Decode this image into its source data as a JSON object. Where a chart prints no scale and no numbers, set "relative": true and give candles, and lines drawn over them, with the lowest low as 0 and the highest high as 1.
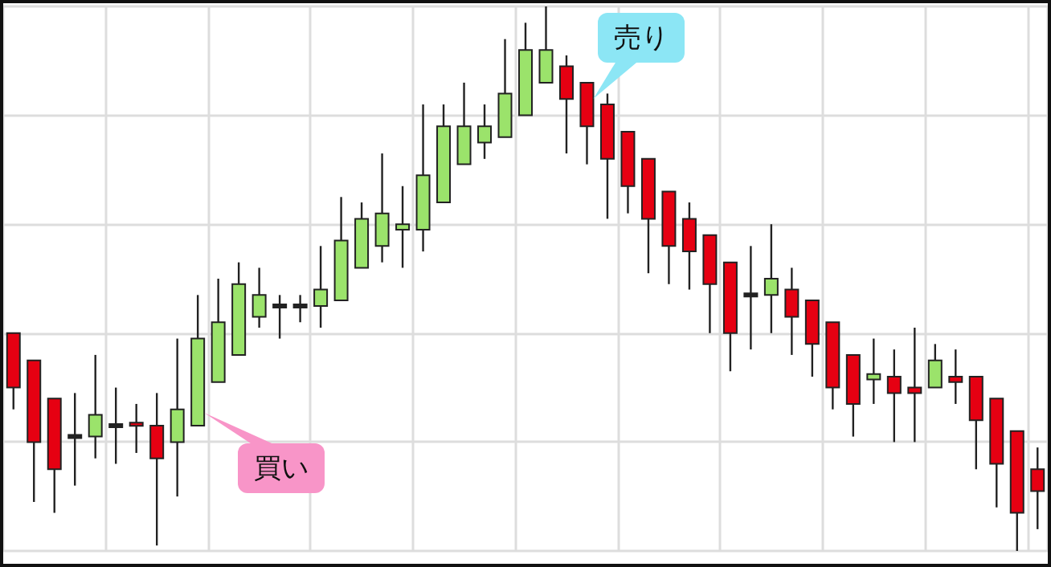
{
  "chart_data": {
    "type": "candlestick",
    "relative": true,
    "grid": true,
    "colors": [
      "#e60012",
      "#e60012",
      "#e60012",
      "#222222",
      "#9be36b",
      "#222222",
      "#e60012",
      "#e60012",
      "#9be36b",
      "#9be36b",
      "#9be36b",
      "#9be36b",
      "#9be36b",
      "#222222",
      "#222222",
      "#9be36b",
      "#9be36b",
      "#9be36b",
      "#9be36b",
      "#9be36b",
      "#9be36b",
      "#9be36b",
      "#9be36b",
      "#9be36b",
      "#9be36b",
      "#9be36b",
      "#9be36b",
      "#e60012",
      "#e60012",
      "#e60012",
      "#e60012",
      "#e60012",
      "#e60012",
      "#e60012",
      "#e60012",
      "#e60012",
      "#222222",
      "#9be36b",
      "#e60012",
      "#e60012",
      "#e60012",
      "#e60012",
      "#9be36b",
      "#e60012",
      "#e60012",
      "#9be36b",
      "#e60012",
      "#e60012",
      "#e60012",
      "#e60012",
      "#e60012"
    ],
    "categories": [
      null,
      null,
      null,
      null,
      null,
      null,
      null,
      null,
      null,
      null,
      null,
      null,
      null,
      null,
      null,
      null,
      null,
      null,
      null,
      null,
      null,
      null,
      null,
      null,
      null,
      null,
      null,
      null,
      null,
      null,
      null,
      null,
      null,
      null,
      null,
      null,
      null,
      null,
      null,
      null,
      null,
      null,
      null,
      null,
      null,
      null,
      null,
      null,
      null,
      null,
      null
    ],
    "ohlc": [
      [
        0.4,
        0.4,
        0.26,
        0.3
      ],
      [
        0.35,
        0.35,
        0.09,
        0.2
      ],
      [
        0.28,
        0.28,
        0.07,
        0.15
      ],
      [
        0.21,
        0.29,
        0.12,
        0.21
      ],
      [
        0.21,
        0.36,
        0.17,
        0.25
      ],
      [
        0.23,
        0.3,
        0.16,
        0.23
      ],
      [
        0.235,
        0.27,
        0.18,
        0.23
      ],
      [
        0.23,
        0.29,
        0.01,
        0.17
      ],
      [
        0.2,
        0.39,
        0.1,
        0.26
      ],
      [
        0.23,
        0.47,
        0.23,
        0.39
      ],
      [
        0.31,
        0.5,
        0.31,
        0.42
      ],
      [
        0.36,
        0.53,
        0.36,
        0.49
      ],
      [
        0.43,
        0.52,
        0.41,
        0.47
      ],
      [
        0.45,
        0.47,
        0.39,
        0.45
      ],
      [
        0.45,
        0.47,
        0.42,
        0.45
      ],
      [
        0.45,
        0.56,
        0.41,
        0.48
      ],
      [
        0.46,
        0.65,
        0.46,
        0.57
      ],
      [
        0.52,
        0.64,
        0.52,
        0.61
      ],
      [
        0.56,
        0.73,
        0.53,
        0.62
      ],
      [
        0.59,
        0.67,
        0.52,
        0.6
      ],
      [
        0.59,
        0.82,
        0.55,
        0.69
      ],
      [
        0.64,
        0.82,
        0.64,
        0.78
      ],
      [
        0.71,
        0.86,
        0.71,
        0.78
      ],
      [
        0.75,
        0.82,
        0.72,
        0.78
      ],
      [
        0.76,
        0.94,
        0.76,
        0.84
      ],
      [
        0.8,
        0.97,
        0.8,
        0.92
      ],
      [
        0.86,
        1,
        0.86,
        0.92
      ],
      [
        0.89,
        0.91,
        0.73,
        0.83
      ],
      [
        0.86,
        0.86,
        0.71,
        0.78
      ],
      [
        0.82,
        0.84,
        0.61,
        0.72
      ],
      [
        0.77,
        0.77,
        0.62,
        0.67
      ],
      [
        0.72,
        0.72,
        0.51,
        0.61
      ],
      [
        0.66,
        0.66,
        0.49,
        0.56
      ],
      [
        0.61,
        0.64,
        0.48,
        0.55
      ],
      [
        0.58,
        0.58,
        0.4,
        0.49
      ],
      [
        0.53,
        0.53,
        0.33,
        0.4
      ],
      [
        0.47,
        0.56,
        0.37,
        0.47
      ],
      [
        0.47,
        0.6,
        0.4,
        0.5
      ],
      [
        0.48,
        0.52,
        0.36,
        0.43
      ],
      [
        0.46,
        0.46,
        0.32,
        0.38
      ],
      [
        0.42,
        0.42,
        0.26,
        0.3
      ],
      [
        0.36,
        0.36,
        0.21,
        0.27
      ],
      [
        0.315,
        0.39,
        0.27,
        0.325
      ],
      [
        0.32,
        0.37,
        0.2,
        0.29
      ],
      [
        0.3,
        0.41,
        0.2,
        0.29
      ],
      [
        0.3,
        0.38,
        0.3,
        0.35
      ],
      [
        0.32,
        0.37,
        0.27,
        0.31
      ],
      [
        0.32,
        0.32,
        0.15,
        0.24
      ],
      [
        0.28,
        0.28,
        0.08,
        0.16
      ],
      [
        0.22,
        0.22,
        0,
        0.07
      ],
      [
        0.15,
        0.19,
        0.04,
        0.11
      ]
    ],
    "annotations": [
      "買い",
      "売り"
    ]
  }
}
